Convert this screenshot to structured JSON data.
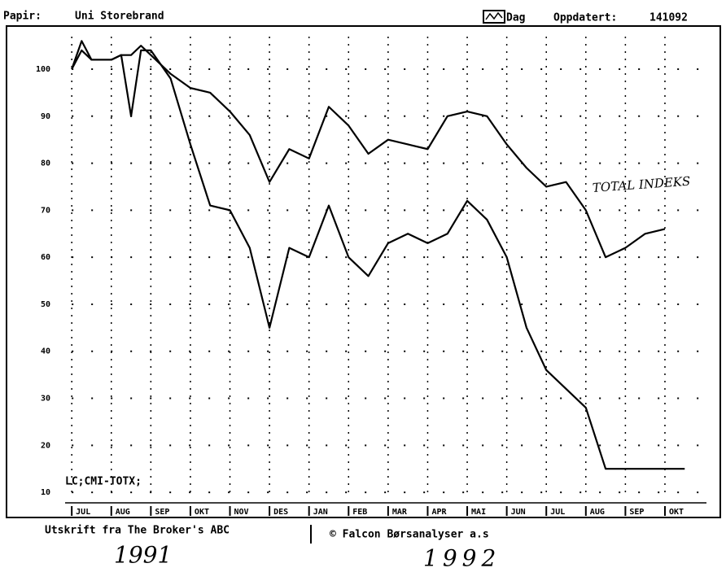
{
  "header": {
    "paper_label": "Papir:",
    "dag": "Dag",
    "updated_label": "Oppdatert:",
    "updated": "141092"
  },
  "chart_data": {
    "type": "line",
    "x": [
      0,
      0.25,
      0.5,
      1,
      1.25,
      1.5,
      1.75,
      2,
      2.5,
      3,
      3.5,
      4,
      4.5,
      5,
      5.5,
      6,
      6.5,
      7,
      7.5,
      8,
      8.5,
      9,
      9.5,
      10,
      10.5,
      11,
      11.5,
      12,
      12.5,
      13,
      13.5,
      14,
      14.5,
      15,
      15.5
    ],
    "series": [
      {
        "name": "TOTAL INDEKS",
        "color": "#000000",
        "values": [
          100,
          104,
          102,
          102,
          103,
          103,
          105,
          103,
          99,
          96,
          95,
          91,
          86,
          76,
          83,
          81,
          92,
          88,
          82,
          85,
          84,
          83,
          90,
          91,
          90,
          84,
          79,
          75,
          76,
          70,
          60,
          62,
          65,
          66,
          null
        ]
      },
      {
        "name": "Uni Storebrand",
        "color": "#000000",
        "values": [
          100,
          106,
          102,
          102,
          103,
          90,
          104,
          104,
          98,
          84,
          71,
          70,
          62,
          45,
          62,
          60,
          71,
          60,
          56,
          63,
          65,
          63,
          65,
          72,
          68,
          60,
          45,
          36,
          32,
          28,
          15,
          15,
          15,
          15,
          15
        ]
      }
    ],
    "xlim": [
      -1.65,
      16.4
    ],
    "xticks": [
      {
        "value": 0,
        "label": "JUL"
      },
      {
        "value": 1,
        "label": "AUG"
      },
      {
        "value": 2,
        "label": "SEP"
      },
      {
        "value": 3,
        "label": "OKT"
      },
      {
        "value": 4,
        "label": "NOV"
      },
      {
        "value": 5,
        "label": "DES"
      },
      {
        "value": 6,
        "label": "JAN"
      },
      {
        "value": 7,
        "label": "FEB"
      },
      {
        "value": 8,
        "label": "MAR"
      },
      {
        "value": 9,
        "label": "APR"
      },
      {
        "value": 10,
        "label": "MAI"
      },
      {
        "value": 11,
        "label": "JUN"
      },
      {
        "value": 12,
        "label": "JUL"
      },
      {
        "value": 13,
        "label": "AUG"
      },
      {
        "value": 14,
        "label": "SEP"
      },
      {
        "value": 15,
        "label": "OKT"
      }
    ],
    "ylim": [
      5,
      109
    ],
    "yticks": [
      10,
      20,
      30,
      40,
      50,
      60,
      70,
      80,
      90,
      100
    ],
    "grid": true,
    "code": "LC;CMI-TOTX;",
    "footer_left": "Utskrift fra The Broker's ABC",
    "footer_right": "© Falcon Børsanalyser a.s",
    "year_labels": [
      "1991",
      "1992"
    ]
  }
}
